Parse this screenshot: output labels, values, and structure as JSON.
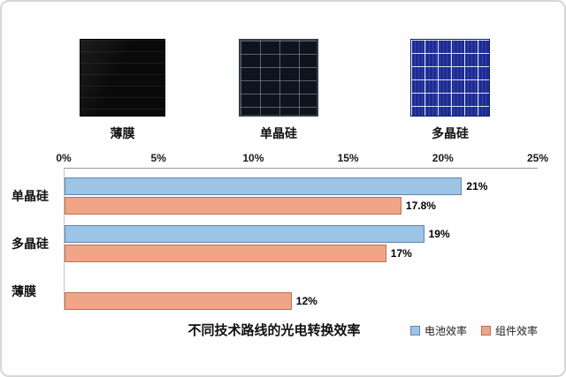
{
  "figure": {
    "background": "#fefefe",
    "border_color": "#d6d6d6"
  },
  "panels": {
    "items": [
      {
        "key": "thin-film",
        "label": "薄膜"
      },
      {
        "key": "mono",
        "label": "单晶硅"
      },
      {
        "key": "poly",
        "label": "多晶硅"
      }
    ]
  },
  "chart_data": {
    "type": "bar",
    "orientation": "horizontal",
    "title": "不同技术路线的光电转换效率",
    "categories": [
      "单晶硅",
      "多晶硅",
      "薄膜"
    ],
    "series": [
      {
        "key": "cell-efficiency",
        "name": "电池效率",
        "color": "#9DC3E6",
        "border_color": "#5E86AE",
        "values": [
          21,
          19,
          null
        ],
        "labels": [
          "21%",
          "19%",
          null
        ]
      },
      {
        "key": "module-efficiency",
        "name": "组件效率",
        "color": "#F0A588",
        "border_color": "#BC7156",
        "values": [
          17.8,
          17,
          12
        ],
        "labels": [
          "17.8%",
          "17%",
          "12%"
        ]
      }
    ],
    "x_ticks": [
      "0%",
      "5%",
      "10%",
      "15%",
      "20%",
      "25%"
    ],
    "xlim": [
      0,
      25
    ],
    "grid": false,
    "legend": {
      "position": "bottom-right",
      "entries": [
        "电池效率",
        "组件效率"
      ]
    }
  }
}
